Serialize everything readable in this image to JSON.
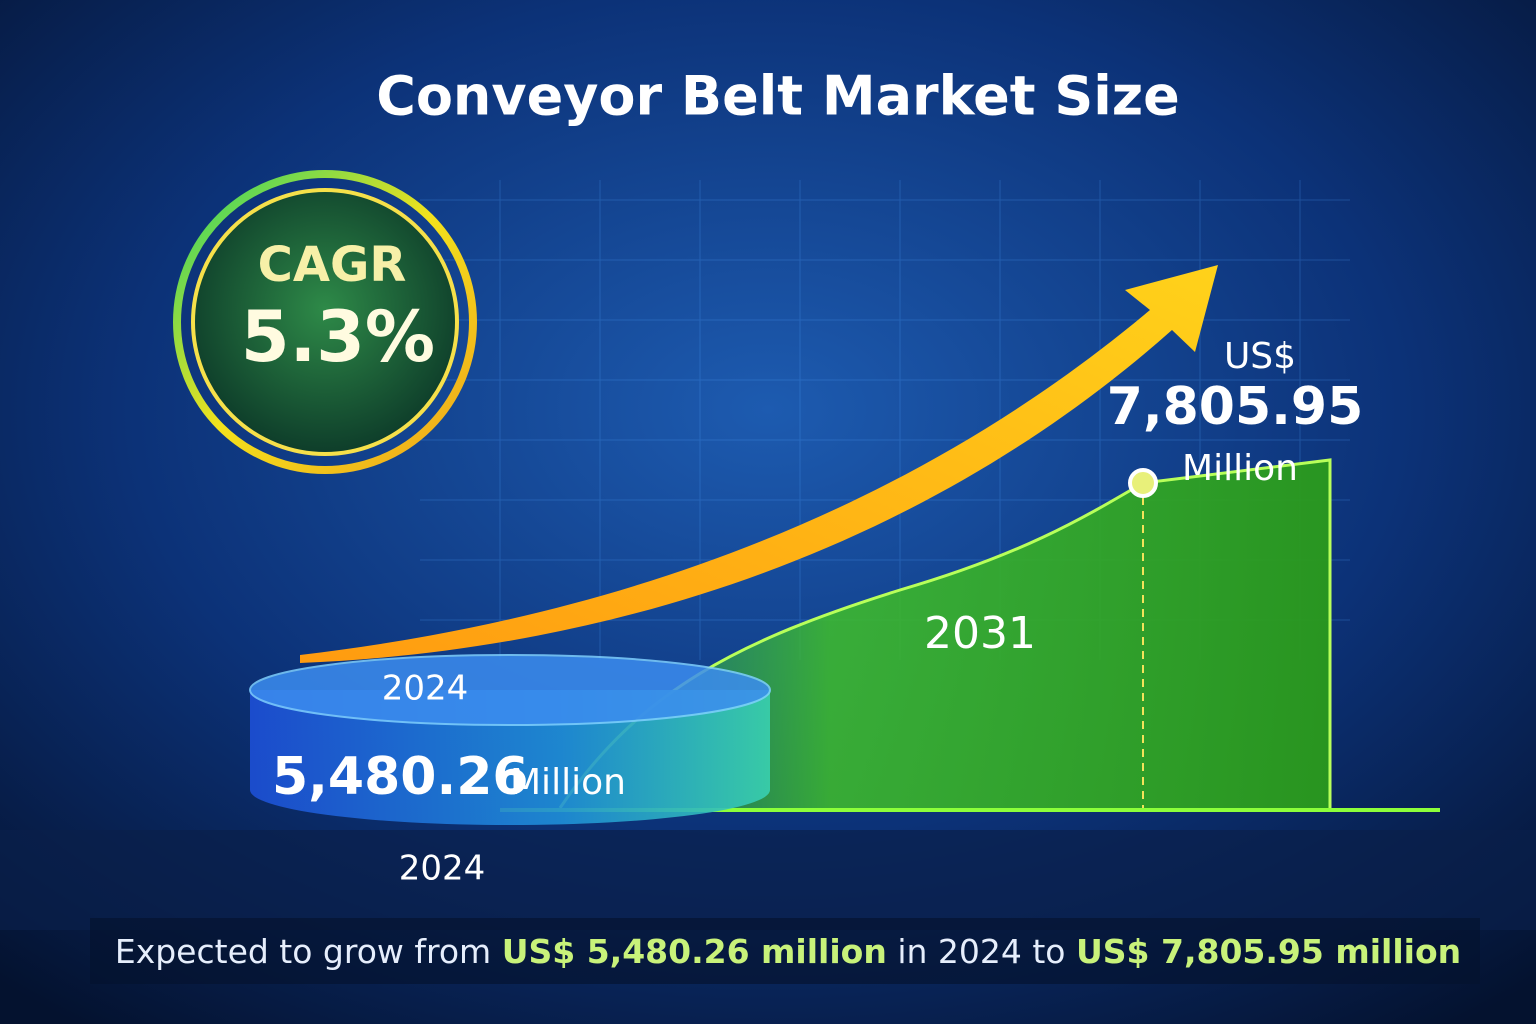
{
  "header": {
    "title": "Conveyor Belt Market Size"
  },
  "cagr": {
    "label": "CAGR",
    "value": "5.3%"
  },
  "end_value": {
    "currency": "US$",
    "amount": "7,805.95",
    "unit": "Million",
    "year": "2031"
  },
  "start_value": {
    "year_top": "2024",
    "amount": "5,480.26",
    "unit": "Million",
    "year_bottom": "2024"
  },
  "footer": {
    "parts": [
      "Expected to grow from ",
      "US$ 5,480.26 million",
      " in 2024 to ",
      "US$ 7,805.95 million"
    ]
  }
}
